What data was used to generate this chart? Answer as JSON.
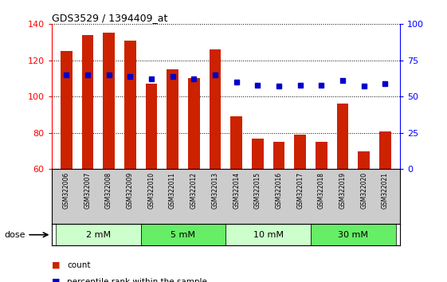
{
  "title": "GDS3529 / 1394409_at",
  "samples": [
    "GSM322006",
    "GSM322007",
    "GSM322008",
    "GSM322009",
    "GSM322010",
    "GSM322011",
    "GSM322012",
    "GSM322013",
    "GSM322014",
    "GSM322015",
    "GSM322016",
    "GSM322017",
    "GSM322018",
    "GSM322019",
    "GSM322020",
    "GSM322021"
  ],
  "counts": [
    125,
    134,
    135,
    131,
    107,
    115,
    110,
    126,
    89,
    77,
    75,
    79,
    75,
    96,
    70,
    81
  ],
  "percentile": [
    65,
    65,
    65,
    64,
    62,
    64,
    62,
    65,
    60,
    58,
    57,
    58,
    58,
    61,
    57,
    59
  ],
  "ylim_left": [
    60,
    140
  ],
  "ylim_right": [
    0,
    100
  ],
  "yticks_left": [
    60,
    80,
    100,
    120,
    140
  ],
  "yticks_right": [
    0,
    25,
    50,
    75,
    100
  ],
  "bar_color": "#cc2200",
  "dot_color": "#0000cc",
  "dose_groups": [
    {
      "label": "2 mM",
      "start": 0,
      "end": 4,
      "color": "#ccffcc"
    },
    {
      "label": "5 mM",
      "start": 4,
      "end": 8,
      "color": "#66ee66"
    },
    {
      "label": "10 mM",
      "start": 8,
      "end": 12,
      "color": "#ccffcc"
    },
    {
      "label": "30 mM",
      "start": 12,
      "end": 16,
      "color": "#66ee66"
    }
  ],
  "legend_count_label": "count",
  "legend_pct_label": "percentile rank within the sample",
  "dose_label": "dose",
  "xticklabel_bg": "#cccccc",
  "plot_bg_color": "#ffffff"
}
